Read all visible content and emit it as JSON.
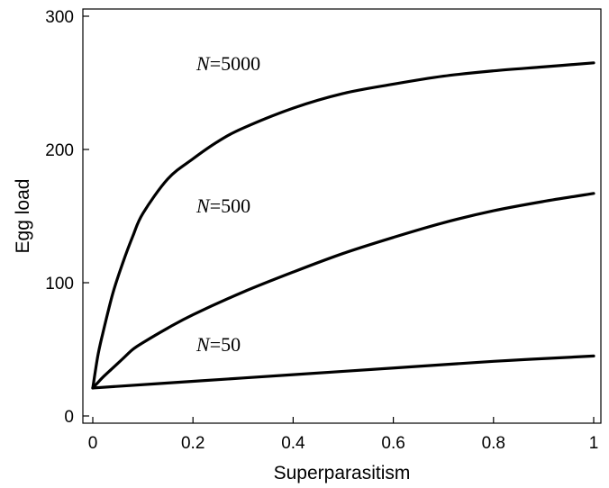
{
  "chart_data": {
    "type": "line",
    "title": "",
    "xlabel": "Superparasitism",
    "ylabel": "Egg load",
    "xlim": [
      -0.01,
      1.01
    ],
    "ylim": [
      -5,
      303
    ],
    "xticks": [
      0,
      0.2,
      0.4,
      0.6,
      0.8,
      1
    ],
    "xtick_labels": [
      "0",
      "0.2",
      "0.4",
      "0.6",
      "0.8",
      "1"
    ],
    "yticks": [
      0,
      100,
      200,
      300
    ],
    "ytick_labels": [
      "0",
      "100",
      "200",
      "300"
    ],
    "grid": false,
    "legend": "inline labels",
    "line_color": "#000000",
    "series": [
      {
        "label_var": "N",
        "label_value": "=5000",
        "x": [
          0,
          0.01,
          0.02,
          0.04,
          0.06,
          0.08,
          0.1,
          0.15,
          0.2,
          0.25,
          0.3,
          0.4,
          0.5,
          0.6,
          0.7,
          0.8,
          0.9,
          1.0
        ],
        "y": [
          21,
          45,
          62,
          92,
          115,
          135,
          152,
          178,
          193,
          206,
          216,
          231,
          242,
          249,
          255,
          259,
          262,
          265
        ]
      },
      {
        "label_var": "N",
        "label_value": "=500",
        "x": [
          0,
          0.01,
          0.02,
          0.04,
          0.06,
          0.08,
          0.1,
          0.15,
          0.2,
          0.3,
          0.4,
          0.5,
          0.6,
          0.7,
          0.8,
          0.9,
          1.0
        ],
        "y": [
          21,
          25,
          29,
          36,
          43,
          50,
          55,
          66,
          76,
          93,
          108,
          122,
          134,
          145,
          154,
          161,
          167
        ]
      },
      {
        "label_var": "N",
        "label_value": "=50",
        "x": [
          0,
          0.2,
          0.4,
          0.6,
          0.8,
          1.0
        ],
        "y": [
          21,
          26,
          31,
          36,
          41,
          45
        ]
      }
    ]
  }
}
